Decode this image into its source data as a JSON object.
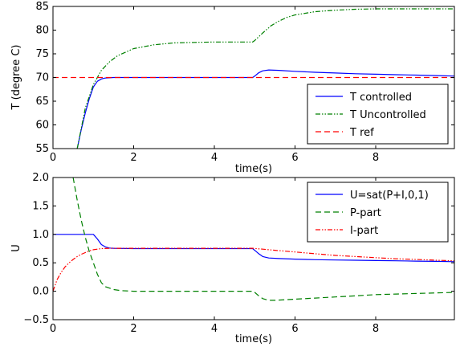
{
  "chart_data": [
    {
      "type": "line",
      "xlabel": "time(s)",
      "ylabel": "T (degree C)",
      "xlim": [
        0,
        9.95
      ],
      "ylim": [
        55,
        85
      ],
      "xticks": [
        0,
        2,
        4,
        6,
        8
      ],
      "xtick_labels": [
        "0",
        "2",
        "4",
        "6",
        "8"
      ],
      "yticks": [
        55,
        60,
        65,
        70,
        75,
        80,
        85
      ],
      "ytick_labels": [
        "55",
        "60",
        "65",
        "70",
        "75",
        "80",
        "85"
      ],
      "grid": false,
      "legend_position": "lower-right",
      "series": [
        {
          "name": "T controlled",
          "color": "#0000ff",
          "dash": "solid",
          "x": [
            0.6,
            0.7,
            0.8,
            0.9,
            1.0,
            1.1,
            1.2,
            1.3,
            1.5,
            2.0,
            3.0,
            4.0,
            4.95,
            5.0,
            5.1,
            5.2,
            5.35,
            5.6,
            6.0,
            6.5,
            7.0,
            7.5,
            8.0,
            8.5,
            9.0,
            9.5,
            9.95
          ],
          "y": [
            55.0,
            59.0,
            62.5,
            65.5,
            68.0,
            69.2,
            69.7,
            69.9,
            70.0,
            70.0,
            70.0,
            70.0,
            70.0,
            70.3,
            71.0,
            71.4,
            71.6,
            71.5,
            71.3,
            71.1,
            70.95,
            70.8,
            70.7,
            70.6,
            70.5,
            70.4,
            70.3
          ]
        },
        {
          "name": "T Uncontrolled",
          "color": "#008000",
          "dash": "dash-dot-dot",
          "x": [
            0.6,
            0.8,
            1.0,
            1.2,
            1.4,
            1.6,
            2.0,
            2.5,
            3.0,
            3.5,
            4.0,
            4.5,
            4.95,
            5.0,
            5.2,
            5.4,
            5.6,
            5.8,
            6.0,
            6.5,
            7.0,
            7.5,
            8.0,
            9.0,
            9.95
          ],
          "y": [
            55.0,
            63.5,
            68.5,
            71.5,
            73.3,
            74.6,
            76.1,
            76.9,
            77.3,
            77.4,
            77.5,
            77.5,
            77.5,
            77.8,
            79.4,
            80.9,
            81.9,
            82.7,
            83.2,
            83.9,
            84.2,
            84.4,
            84.5,
            84.5,
            84.5
          ]
        },
        {
          "name": "T ref",
          "color": "#ff0000",
          "dash": "dashed",
          "x": [
            0,
            9.95
          ],
          "y": [
            70.0,
            70.0
          ]
        }
      ]
    },
    {
      "type": "line",
      "xlabel": "time(s)",
      "ylabel": "U",
      "xlim": [
        0,
        9.95
      ],
      "ylim": [
        -0.5,
        2.0
      ],
      "xticks": [
        0,
        2,
        4,
        6,
        8
      ],
      "xtick_labels": [
        "0",
        "2",
        "4",
        "6",
        "8"
      ],
      "yticks": [
        -0.5,
        0.0,
        0.5,
        1.0,
        1.5,
        2.0
      ],
      "ytick_labels": [
        "−0.5",
        "0.0",
        "0.5",
        "1.0",
        "1.5",
        "2.0"
      ],
      "grid": false,
      "legend_position": "upper-right",
      "series": [
        {
          "name": "U=sat(P+I,0,1)",
          "color": "#0000ff",
          "dash": "solid",
          "x": [
            0,
            0.5,
            1.0,
            1.1,
            1.2,
            1.3,
            1.4,
            1.5,
            2.0,
            3.0,
            4.0,
            4.95,
            5.0,
            5.1,
            5.2,
            5.35,
            5.6,
            6.0,
            6.5,
            7.0,
            7.5,
            8.0,
            8.5,
            9.0,
            9.5,
            9.95
          ],
          "y": [
            1.0,
            1.0,
            1.0,
            0.92,
            0.82,
            0.78,
            0.76,
            0.755,
            0.75,
            0.75,
            0.75,
            0.75,
            0.72,
            0.66,
            0.61,
            0.585,
            0.575,
            0.565,
            0.555,
            0.55,
            0.545,
            0.54,
            0.535,
            0.53,
            0.525,
            0.52
          ]
        },
        {
          "name": "P-part",
          "color": "#008000",
          "dash": "dashed",
          "x": [
            0.5,
            0.6,
            0.7,
            0.8,
            0.9,
            1.0,
            1.1,
            1.2,
            1.3,
            1.5,
            1.7,
            2.0,
            3.0,
            4.0,
            4.95,
            5.0,
            5.1,
            5.2,
            5.35,
            5.5,
            6.0,
            6.5,
            7.0,
            7.5,
            8.0,
            8.5,
            9.0,
            9.5,
            9.95
          ],
          "y": [
            2.0,
            1.6,
            1.25,
            0.95,
            0.7,
            0.5,
            0.3,
            0.15,
            0.08,
            0.03,
            0.01,
            0.0,
            0.0,
            0.0,
            0.0,
            -0.02,
            -0.08,
            -0.13,
            -0.16,
            -0.16,
            -0.14,
            -0.12,
            -0.1,
            -0.08,
            -0.06,
            -0.05,
            -0.04,
            -0.03,
            -0.02
          ]
        },
        {
          "name": "I-part",
          "color": "#ff0000",
          "dash": "dash-dot-dot",
          "x": [
            0,
            0.1,
            0.2,
            0.3,
            0.4,
            0.5,
            0.6,
            0.7,
            0.8,
            0.9,
            1.0,
            1.2,
            1.4,
            1.5,
            2.0,
            3.0,
            4.0,
            4.95,
            5.2,
            5.5,
            6.0,
            6.5,
            7.0,
            7.5,
            8.0,
            8.5,
            9.0,
            9.5,
            9.95
          ],
          "y": [
            0.0,
            0.2,
            0.33,
            0.43,
            0.5,
            0.56,
            0.61,
            0.65,
            0.68,
            0.71,
            0.73,
            0.75,
            0.755,
            0.755,
            0.755,
            0.755,
            0.755,
            0.755,
            0.74,
            0.72,
            0.69,
            0.66,
            0.63,
            0.61,
            0.59,
            0.57,
            0.56,
            0.545,
            0.535
          ]
        }
      ]
    }
  ]
}
